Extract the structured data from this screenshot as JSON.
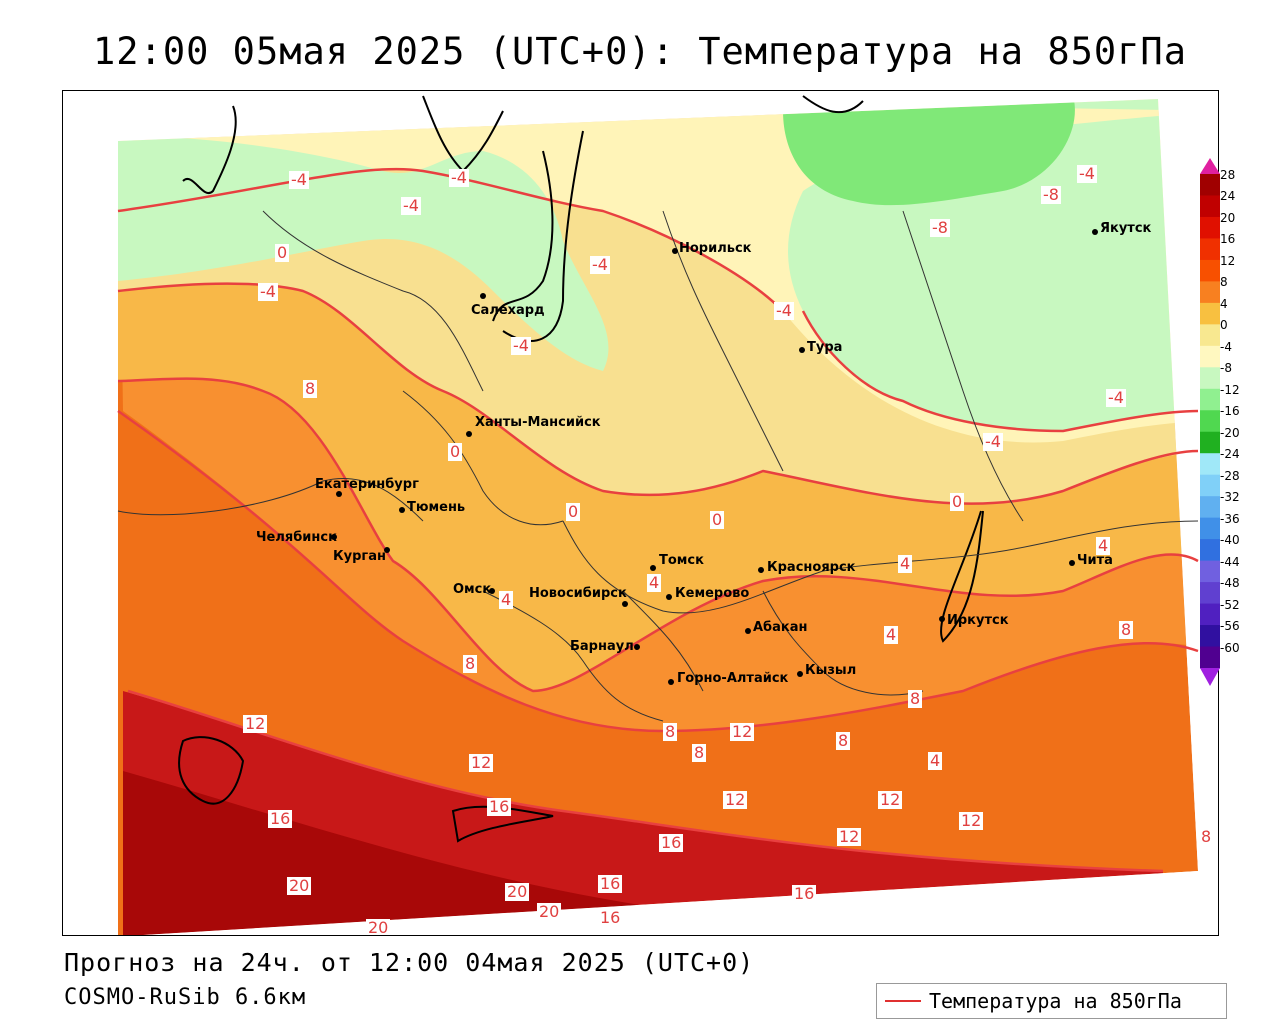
{
  "title": "12:00 05мая 2025 (UTC+0): Температура на 850гПа",
  "footer": {
    "forecast": "Прогноз на 24ч. от 12:00 04мая 2025 (UTC+0)",
    "model": "COSMO-RuSib 6.6км"
  },
  "legend": {
    "label": "Температура на 850гПа",
    "line_color": "#e03030"
  },
  "colorbar": {
    "ticks": [
      "28",
      "24",
      "20",
      "16",
      "12",
      "8",
      "4",
      "0",
      "-4",
      "-8",
      "-12",
      "-16",
      "-20",
      "-24",
      "-28",
      "-32",
      "-36",
      "-40",
      "-44",
      "-48",
      "-52",
      "-56",
      "-60"
    ],
    "colors": [
      "#a00000",
      "#c00000",
      "#e01000",
      "#f03000",
      "#f85000",
      "#f88020",
      "#f8c040",
      "#f8e890",
      "#fff8c0",
      "#c8f8c0",
      "#90f090",
      "#50d850",
      "#20b020",
      "#a0e8f8",
      "#80d0f8",
      "#60b0f0",
      "#4090e8",
      "#3070e0",
      "#7060e0",
      "#6040d0",
      "#5020c0",
      "#3010a0",
      "#500090"
    ]
  },
  "cities": [
    {
      "name": "Норильск"
    },
    {
      "name": "Салехард"
    },
    {
      "name": "Якутск"
    },
    {
      "name": "Тура"
    },
    {
      "name": "Ханты-Мансийск"
    },
    {
      "name": "Екатеринбург"
    },
    {
      "name": "Тюмень"
    },
    {
      "name": "Челябинск"
    },
    {
      "name": "Курган"
    },
    {
      "name": "Омск"
    },
    {
      "name": "Новосибирск"
    },
    {
      "name": "Томск"
    },
    {
      "name": "Кемерово"
    },
    {
      "name": "Красноярск"
    },
    {
      "name": "Барнаул"
    },
    {
      "name": "Абакан"
    },
    {
      "name": "Горно-Алтайск"
    },
    {
      "name": "Кызыл"
    },
    {
      "name": "Иркутск"
    },
    {
      "name": "Чита"
    }
  ],
  "contour_labels": [
    "-4",
    "-4",
    "-4",
    "-4",
    "-8",
    "-8",
    "-4",
    "-4",
    "-4",
    "-4",
    "-4",
    "-4",
    "0",
    "4",
    "8",
    "0",
    "0",
    "0",
    "0",
    "4",
    "4",
    "4",
    "4",
    "8",
    "8",
    "8",
    "12",
    "12",
    "8",
    "12",
    "4",
    "8",
    "8",
    "12",
    "12",
    "12",
    "12",
    "8",
    "16",
    "16",
    "16",
    "20",
    "20",
    "20",
    "16",
    "16",
    "16",
    "20"
  ]
}
